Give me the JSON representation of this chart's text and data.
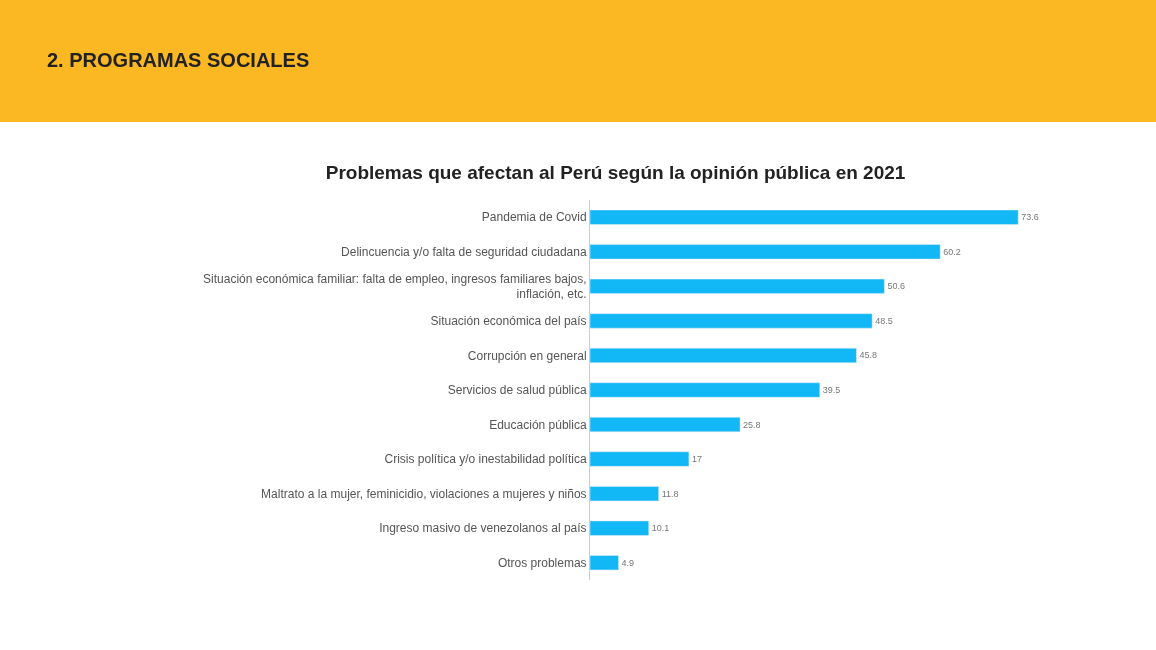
{
  "chart_data": {
    "type": "bar",
    "orientation": "horizontal",
    "title": "Problemas que afectan al Perú según la opinión pública en 2021",
    "annotations": [
      "2. PROGRAMAS SOCIALES"
    ],
    "categories": [
      "Pandemia de Covid",
      "Delincuencia y/o falta de seguridad ciudadana",
      "Situación económica familiar: falta de empleo, ingresos familiares bajos, inflación, etc.",
      "Situación económica del país",
      "Corrupción en general",
      "Servicios de salud pública",
      "Educación pública",
      "Crisis política y/o inestabilidad política",
      "Maltrato a la mujer, feminicidio, violaciones a mujeres y niños",
      "Ingreso masivo de venezolanos al país",
      "Otros problemas"
    ],
    "values": [
      73.6,
      60.2,
      50.6,
      48.5,
      45.8,
      39.5,
      25.8,
      17,
      11.8,
      10.1,
      4.9
    ],
    "color": "#12b7f5",
    "data_labels": true
  }
}
